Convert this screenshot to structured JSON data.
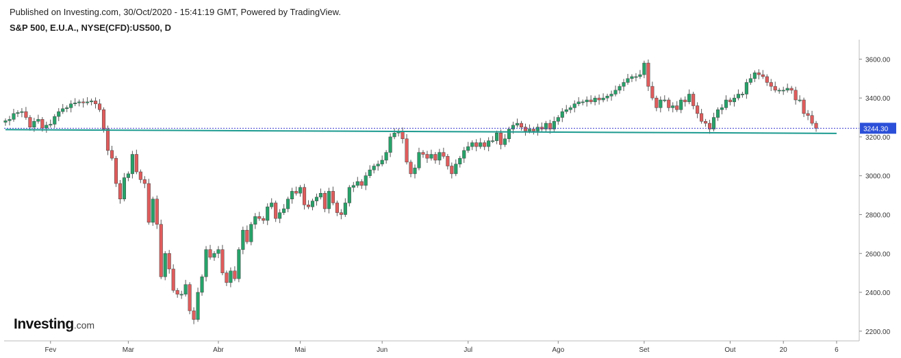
{
  "header": {
    "published": "Published on Investing.com, 30/Oct/2020 - 15:41:19 GMT, Powered by TradingView.",
    "symbol": "S&P 500, E.U.A., NYSE(CFD):US500, D"
  },
  "logo": {
    "main": "Investing",
    "sub": ".com"
  },
  "colors": {
    "up": "#26a269",
    "down": "#e05c5c",
    "trend": "#1b9a8f",
    "priceLine": "#3a3ad0",
    "priceTag": "#2b4fd8"
  },
  "chart_data": {
    "type": "candlestick",
    "title": "S&P 500, E.U.A., NYSE(CFD):US500, D",
    "ylim": [
      2150,
      3700
    ],
    "y_ticks": [
      2200,
      2400,
      2600,
      2800,
      3000,
      3200,
      3400,
      3600
    ],
    "y_tick_labels": [
      "2200.00",
      "2400.00",
      "2600.00",
      "2800.00",
      "3000.00",
      "3200.00",
      "3400.00",
      "3600.00"
    ],
    "x_ticks": [
      {
        "label": "Fev",
        "bar": 11
      },
      {
        "label": "Mar",
        "bar": 30
      },
      {
        "label": "Abr",
        "bar": 52
      },
      {
        "label": "Mai",
        "bar": 72
      },
      {
        "label": "Jun",
        "bar": 92
      },
      {
        "label": "Jul",
        "bar": 113
      },
      {
        "label": "Ago",
        "bar": 135
      },
      {
        "label": "Set",
        "bar": 156
      },
      {
        "label": "Out",
        "bar": 177
      },
      {
        "label": "20",
        "bar": 190
      },
      {
        "label": "6",
        "bar": 203
      }
    ],
    "last_price": 3244.3,
    "last_price_label": "3244.30",
    "trendline": {
      "from": {
        "bar": 0,
        "value": 3237
      },
      "to": {
        "bar": 203,
        "value": 3218
      }
    },
    "closes": [
      3283,
      3290,
      3320,
      3325,
      3330,
      3300,
      3250,
      3280,
      3290,
      3245,
      3260,
      3265,
      3305,
      3330,
      3345,
      3350,
      3370,
      3375,
      3380,
      3375,
      3380,
      3385,
      3370,
      3340,
      3240,
      3130,
      3090,
      2960,
      2880,
      2990,
      3010,
      3110,
      3020,
      2980,
      2960,
      2760,
      2880,
      2750,
      2480,
      2600,
      2520,
      2410,
      2390,
      2390,
      2440,
      2305,
      2260,
      2400,
      2480,
      2620,
      2580,
      2600,
      2620,
      2500,
      2450,
      2510,
      2470,
      2620,
      2720,
      2660,
      2750,
      2790,
      2780,
      2770,
      2840,
      2860,
      2780,
      2810,
      2830,
      2880,
      2920,
      2910,
      2940,
      2850,
      2840,
      2870,
      2890,
      2910,
      2830,
      2920,
      2860,
      2810,
      2800,
      2860,
      2940,
      2950,
      2970,
      2950,
      3000,
      3030,
      3050,
      3060,
      3080,
      3120,
      3200,
      3220,
      3230,
      3190,
      3070,
      3010,
      3040,
      3120,
      3110,
      3090,
      3110,
      3080,
      3120,
      3100,
      3050,
      3010,
      3060,
      3090,
      3130,
      3150,
      3170,
      3150,
      3170,
      3150,
      3180,
      3180,
      3220,
      3160,
      3190,
      3240,
      3260,
      3270,
      3250,
      3230,
      3240,
      3230,
      3250,
      3240,
      3270,
      3240,
      3280,
      3300,
      3330,
      3340,
      3350,
      3370,
      3380,
      3380,
      3390,
      3380,
      3400,
      3390,
      3400,
      3410,
      3420,
      3440,
      3460,
      3480,
      3500,
      3510,
      3510,
      3520,
      3580,
      3460,
      3400,
      3350,
      3390,
      3390,
      3350,
      3360,
      3340,
      3390,
      3380,
      3420,
      3360,
      3320,
      3280,
      3270,
      3240,
      3300,
      3340,
      3350,
      3390,
      3380,
      3400,
      3420,
      3420,
      3480,
      3500,
      3530,
      3520,
      3510,
      3480,
      3460,
      3440,
      3440,
      3440,
      3450,
      3440,
      3390,
      3390,
      3320,
      3310,
      3270,
      3244.3
    ]
  }
}
